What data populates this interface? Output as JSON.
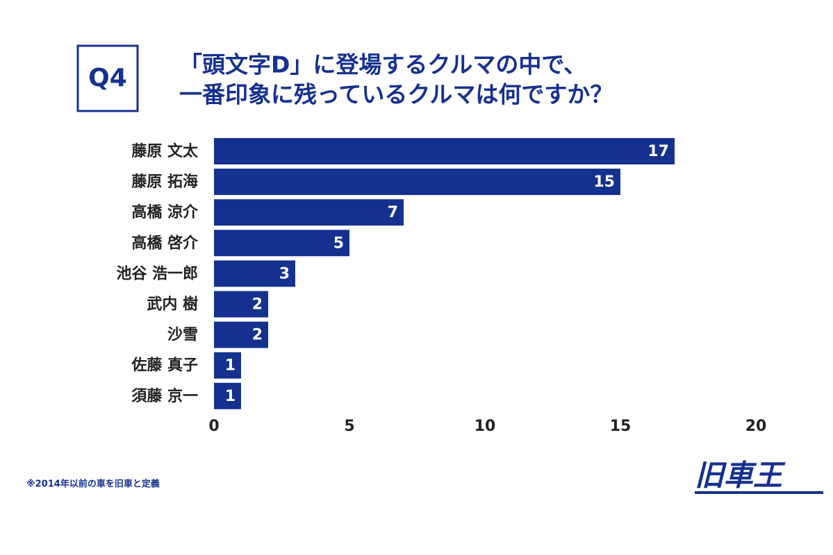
{
  "chart_data": {
    "type": "bar",
    "orientation": "horizontal",
    "badge": "Q4",
    "title_lines": [
      "「頭文字D」に登場するクルマの中で、",
      "一番印象に残っているクルマは何ですか？"
    ],
    "categories": [
      "藤原 文太",
      "藤原 拓海",
      "高橋 涼介",
      "高橋 啓介",
      "池谷 浩一郎",
      "武内 樹",
      "沙雪",
      "佐藤 真子",
      "須藤 京一"
    ],
    "values": [
      17,
      15,
      7,
      5,
      3,
      2,
      2,
      1,
      1
    ],
    "color": "#15318f",
    "xlim": [
      0,
      20
    ],
    "xticks": [
      0,
      5,
      10,
      15,
      20
    ],
    "grid": false,
    "footnote": "※2014年以前の車を旧車と定義",
    "logo": "旧車王"
  }
}
